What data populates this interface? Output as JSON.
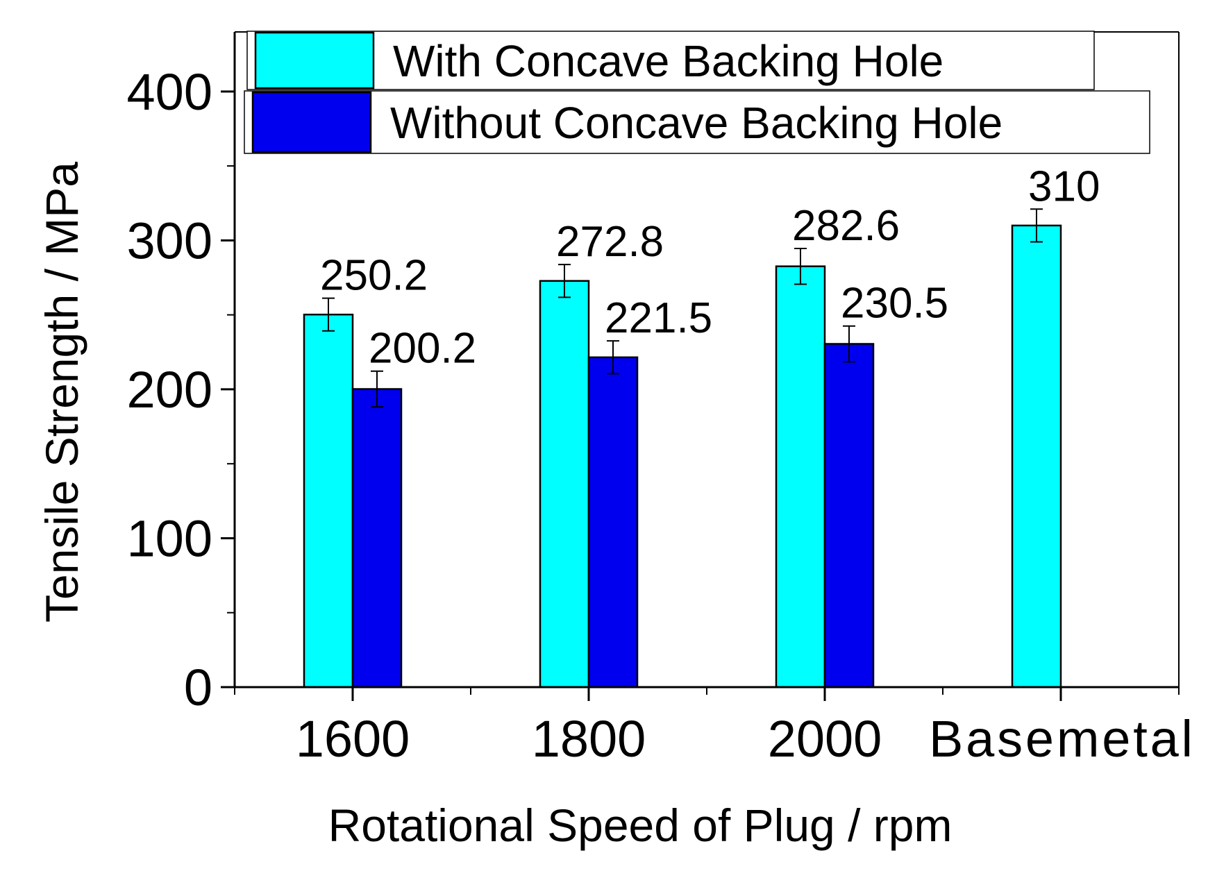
{
  "chart_data": {
    "type": "bar",
    "categories": [
      "1600",
      "1800",
      "2000",
      "Basemetal"
    ],
    "series": [
      {
        "name": "With Concave Backing Hole",
        "color": "#00ffff",
        "values": [
          250.2,
          272.8,
          282.6,
          310
        ],
        "errors": [
          11,
          11,
          12,
          11
        ],
        "labels": [
          "250.2",
          "272.8",
          "282.6",
          "310"
        ]
      },
      {
        "name": "Without Concave Backing Hole",
        "color": "#0000ee",
        "values": [
          200.2,
          221.5,
          230.5,
          null
        ],
        "errors": [
          12,
          11,
          12,
          null
        ],
        "labels": [
          "200.2",
          "221.5",
          "230.5",
          ""
        ]
      }
    ],
    "xlabel": "Rotational Speed of Plug / rpm",
    "ylabel": "Tensile Strength / MPa",
    "ylim": [
      0,
      440
    ],
    "yticks": [
      0,
      100,
      200,
      300,
      400
    ],
    "y_minor_ticks": [
      50,
      150,
      250,
      350
    ],
    "legend_position": "top"
  }
}
